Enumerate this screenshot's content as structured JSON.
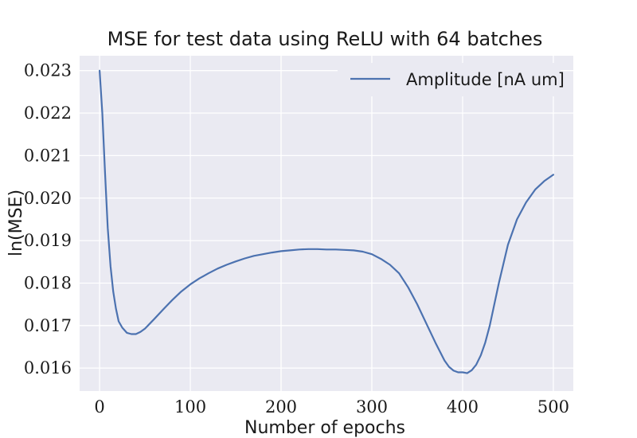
{
  "chart_data": {
    "type": "line",
    "title": "MSE for test data using ReLU with 64 batches",
    "xlabel": "Number of epochs",
    "ylabel": "ln(MSE)",
    "xlim": [
      -22,
      522
    ],
    "ylim": [
      0.01546,
      0.02335
    ],
    "xticks": [
      0,
      100,
      200,
      300,
      400,
      500
    ],
    "yticks": [
      0.016,
      0.017,
      0.018,
      0.019,
      0.02,
      0.021,
      0.022,
      0.023
    ],
    "xtick_labels": [
      "0",
      "100",
      "200",
      "300",
      "400",
      "500"
    ],
    "ytick_labels": [
      "0.016",
      "0.017",
      "0.018",
      "0.019",
      "0.020",
      "0.021",
      "0.022",
      "0.023"
    ],
    "grid": true,
    "legend_position": "top-right",
    "series_color": "#4c72b0",
    "background_color": "#eaeaf2",
    "series": [
      {
        "name": "Amplitude [nA um]",
        "x": [
          0,
          3,
          6,
          9,
          12,
          15,
          18,
          21,
          25,
          30,
          35,
          40,
          45,
          50,
          60,
          70,
          80,
          90,
          100,
          110,
          120,
          130,
          140,
          150,
          160,
          170,
          180,
          190,
          200,
          210,
          220,
          230,
          240,
          250,
          260,
          270,
          280,
          290,
          300,
          310,
          320,
          330,
          340,
          350,
          360,
          370,
          380,
          385,
          390,
          395,
          400,
          405,
          410,
          415,
          420,
          425,
          430,
          440,
          450,
          460,
          470,
          480,
          490,
          500
        ],
        "values": [
          0.023,
          0.022,
          0.0206,
          0.0193,
          0.0184,
          0.0178,
          0.0174,
          0.0171,
          0.01695,
          0.01683,
          0.0168,
          0.0168,
          0.01685,
          0.01693,
          0.01715,
          0.01738,
          0.0176,
          0.0178,
          0.01797,
          0.01811,
          0.01823,
          0.01834,
          0.01843,
          0.01851,
          0.01858,
          0.01864,
          0.01868,
          0.01872,
          0.01875,
          0.01877,
          0.01879,
          0.0188,
          0.0188,
          0.01879,
          0.01879,
          0.01878,
          0.01877,
          0.01874,
          0.01868,
          0.01857,
          0.01843,
          0.01823,
          0.0179,
          0.0175,
          0.01705,
          0.0166,
          0.01618,
          0.01603,
          0.01594,
          0.0159,
          0.0159,
          0.01588,
          0.01595,
          0.01608,
          0.0163,
          0.0166,
          0.017,
          0.018,
          0.0189,
          0.0195,
          0.0199,
          0.0202,
          0.0204,
          0.02055
        ]
      }
    ]
  }
}
